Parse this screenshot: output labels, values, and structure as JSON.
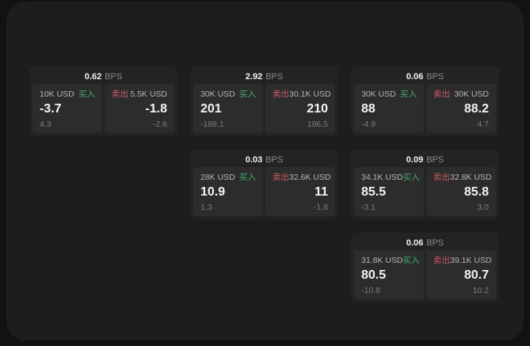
{
  "labels": {
    "bps_suffix": "BPS",
    "buy": "买入",
    "sell": "卖出"
  },
  "colors": {
    "backdrop": "#121212",
    "panel_bg": "#1d1d1d",
    "card_bg": "#232323",
    "quote_bg": "#2c2c2c",
    "buy_green": "#3fab6b",
    "sell_red": "#cb5a68",
    "value_white": "#f4f4f4",
    "muted_gray": "#8a8a8a"
  },
  "cards": [
    {
      "bps": "0.62",
      "buy": {
        "amount": "10K USD",
        "value": "-3.7",
        "sub": "4.3"
      },
      "sell": {
        "amount": "5.5K USD",
        "value": "-1.8",
        "sub": "-2.6"
      }
    },
    {
      "bps": "2.92",
      "buy": {
        "amount": "30K USD",
        "value": "201",
        "sub": "-188.1"
      },
      "sell": {
        "amount": "30.1K USD",
        "value": "210",
        "sub": "196.5"
      }
    },
    {
      "bps": "0.06",
      "buy": {
        "amount": "30K USD",
        "value": "88",
        "sub": "-4.9"
      },
      "sell": {
        "amount": "30K USD",
        "value": "88.2",
        "sub": "4.7"
      }
    },
    {
      "bps": "0.03",
      "buy": {
        "amount": "28K USD",
        "value": "10.9",
        "sub": "1.3"
      },
      "sell": {
        "amount": "32.6K USD",
        "value": "11",
        "sub": "-1.8"
      }
    },
    {
      "bps": "0.09",
      "buy": {
        "amount": "34.1K USD",
        "value": "85.5",
        "sub": "-3.1"
      },
      "sell": {
        "amount": "32.8K USD",
        "value": "85.8",
        "sub": "3.0"
      }
    },
    {
      "bps": "0.06",
      "buy": {
        "amount": "31.8K USD",
        "value": "80.5",
        "sub": "-10.8"
      },
      "sell": {
        "amount": "39.1K USD",
        "value": "80.7",
        "sub": "10.2"
      }
    }
  ]
}
